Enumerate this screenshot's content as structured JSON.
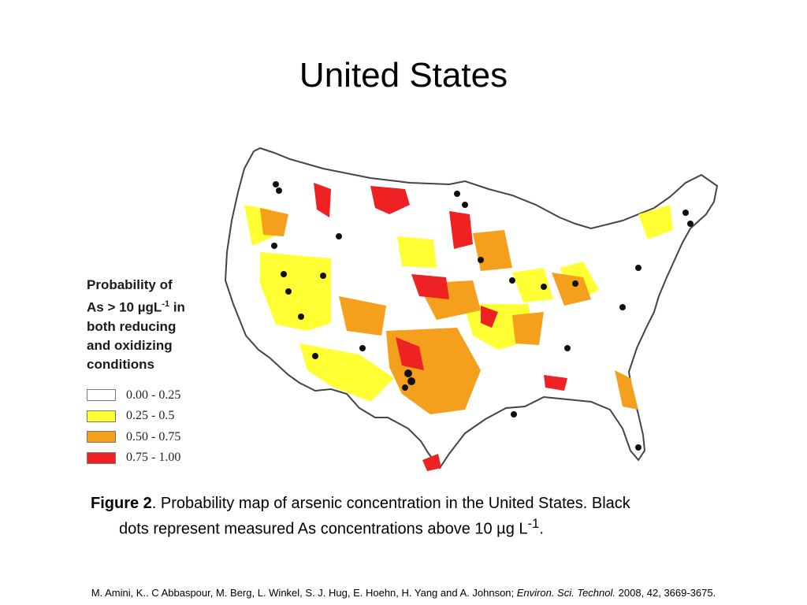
{
  "slide": {
    "title": "United States"
  },
  "legend": {
    "title_prefix": "Probability of\nAs > 10 µgL",
    "title_sup": "-1",
    "title_suffix": " in\nboth reducing\nand oxidizing\nconditions",
    "items": [
      {
        "label": "0.00 - 0.25",
        "color": "#ffffff"
      },
      {
        "label": "0.25 - 0.5",
        "color": "#ffff33"
      },
      {
        "label": "0.50  - 0.75",
        "color": "#f4a01c"
      },
      {
        "label": "0.75 - 1.00",
        "color": "#ee2222"
      }
    ]
  },
  "map": {
    "region": "Contiguous United States",
    "colors": {
      "outline": "#444444",
      "low": "#ffffff",
      "medium": "#ffff33",
      "high": "#f4a01c",
      "very_high": "#ee2222",
      "measured_dot": "#111111"
    }
  },
  "caption": {
    "label": "Figure 2",
    "text_line1": ". Probability map of arsenic concentration in the United States. Black",
    "text_line2": "dots represent measured As concentrations above 10 µg L",
    "sup": "-1",
    "end": "."
  },
  "citation": {
    "authors": "M. Amini, K.. C Abbaspour, M. Berg, L. Winkel, S. J. Hug, E. Hoehn, H. Yang and A. Johnson; ",
    "journal": "Environ. Sci. Technol.",
    "details": " 2008, 42, 3669-3675."
  }
}
